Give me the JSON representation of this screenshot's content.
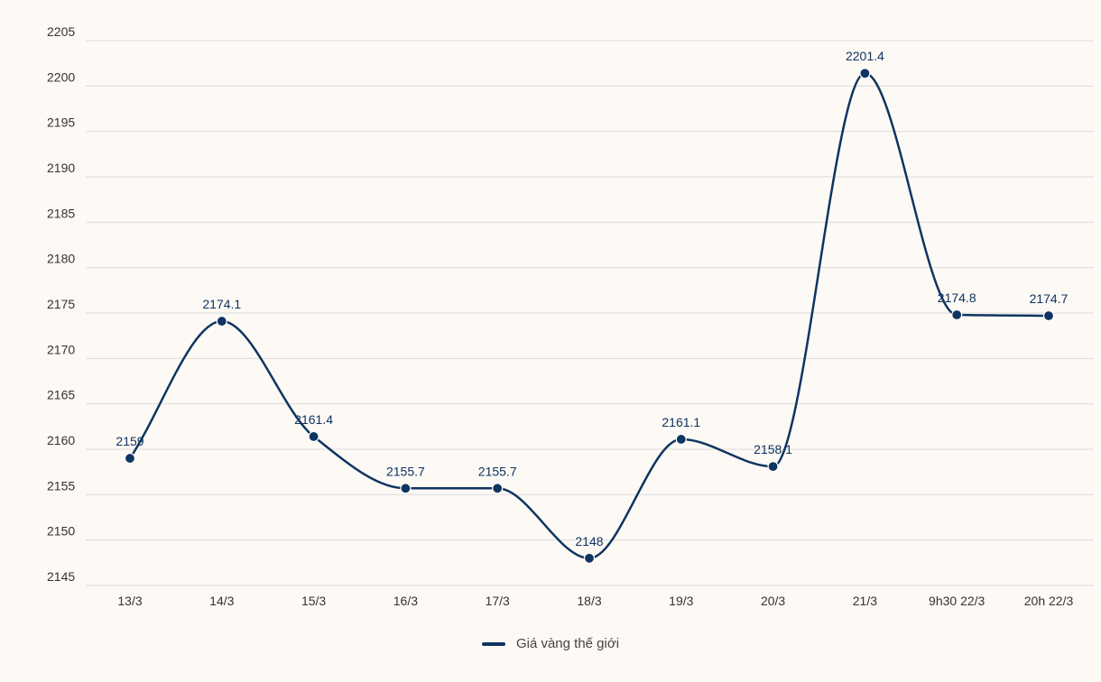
{
  "chart_data": {
    "type": "line",
    "categories": [
      "13/3",
      "14/3",
      "15/3",
      "16/3",
      "17/3",
      "18/3",
      "19/3",
      "20/3",
      "21/3",
      "9h30 22/3",
      "20h 22/3"
    ],
    "series": [
      {
        "name": "Giá vàng thế giới",
        "values": [
          2159,
          2174.1,
          2161.4,
          2155.7,
          2155.7,
          2148,
          2161.1,
          2158.1,
          2201.4,
          2174.8,
          2174.7
        ],
        "labels": [
          "2159",
          "2174.1",
          "2161.4",
          "2155.7",
          "2155.7",
          "2148",
          "2161.1",
          "2158.1",
          "2201.4",
          "2174.8",
          "2174.7"
        ],
        "color": "#0f3460"
      }
    ],
    "ylim": [
      2145,
      2205
    ],
    "yticks": [
      "2145",
      "2150",
      "2155",
      "2160",
      "2165",
      "2170",
      "2175",
      "2180",
      "2185",
      "2190",
      "2195",
      "2200",
      "2205"
    ],
    "grid": true,
    "legend_position": "bottom-center",
    "colors": {
      "line": "#0f3460",
      "grid": "#dcdcdc",
      "tick_text": "#333333",
      "background": "#fdf9f5"
    }
  },
  "legend": {
    "label": "Giá vàng thế giới"
  }
}
